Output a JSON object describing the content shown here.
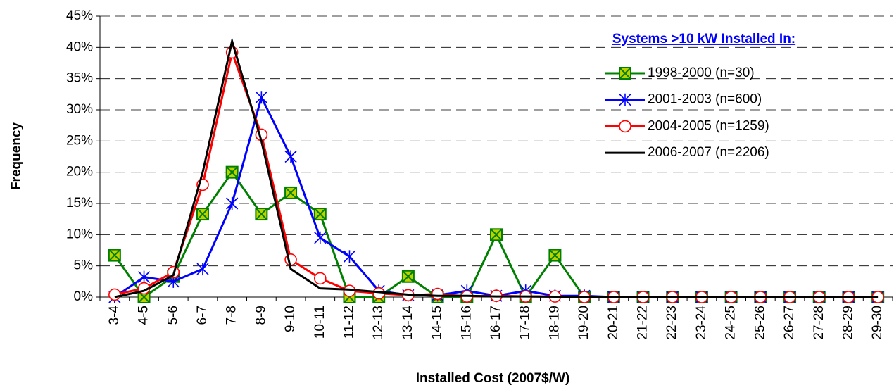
{
  "chart_data": {
    "type": "line",
    "x_label": "Installed Cost (2007$/W)",
    "y_label": "Frequency",
    "legend_title": "Systems >10 kW Installed In:",
    "categories": [
      "3-4",
      "4-5",
      "5-6",
      "6-7",
      "7-8",
      "8-9",
      "9-10",
      "10-11",
      "11-12",
      "12-13",
      "13-14",
      "14-15",
      "15-16",
      "16-17",
      "17-18",
      "18-19",
      "19-20",
      "20-21",
      "21-22",
      "22-23",
      "23-24",
      "24-25",
      "25-26",
      "26-27",
      "27-28",
      "28-29",
      "29-30"
    ],
    "series": [
      {
        "name": "1998-2000 (n=30)",
        "color": "#008000",
        "marker": "square-x",
        "values": [
          6.7,
          0,
          3.3,
          13.3,
          20,
          13.3,
          16.7,
          13.3,
          0,
          0,
          3.3,
          0,
          0,
          10,
          0,
          6.7,
          0,
          0,
          0,
          0,
          0,
          0,
          0,
          0,
          0,
          0,
          0
        ]
      },
      {
        "name": "2001-2003 (n=600)",
        "color": "#0000ff",
        "marker": "asterisk",
        "values": [
          0,
          3.2,
          2.5,
          4.5,
          15,
          32,
          22.5,
          9.5,
          6.5,
          1,
          0.3,
          0.3,
          1,
          0.2,
          1,
          0.2,
          0.2,
          0,
          0,
          0,
          0,
          0,
          0,
          0,
          0,
          0,
          0
        ]
      },
      {
        "name": "2004-2005 (n=1259)",
        "color": "#ff0000",
        "marker": "circle",
        "values": [
          0.4,
          1.4,
          4,
          18,
          39.2,
          26,
          6,
          3,
          1,
          0.6,
          0.3,
          0.5,
          0.1,
          0.2,
          0.1,
          0.1,
          0,
          0,
          0,
          0,
          0,
          0,
          0,
          0,
          0,
          0,
          0
        ]
      },
      {
        "name": "2006-2007 (n=2206)",
        "color": "#000000",
        "marker": "none",
        "values": [
          0,
          1,
          3.5,
          20,
          41,
          25,
          4.5,
          1.4,
          1.2,
          0.8,
          0.4,
          0.2,
          0.2,
          0.1,
          0.1,
          0.05,
          0.05,
          0,
          0,
          0,
          0,
          0,
          0,
          0,
          0,
          0,
          0
        ]
      }
    ],
    "ylim": [
      0,
      45
    ],
    "yticks": [
      {
        "value": 0,
        "label": "0%"
      },
      {
        "value": 5,
        "label": "5%"
      },
      {
        "value": 10,
        "label": "10%"
      },
      {
        "value": 15,
        "label": "15%"
      },
      {
        "value": 20,
        "label": "20%"
      },
      {
        "value": 25,
        "label": "25%"
      },
      {
        "value": 30,
        "label": "30%"
      },
      {
        "value": 35,
        "label": "35%"
      },
      {
        "value": 40,
        "label": "40%"
      },
      {
        "value": 45,
        "label": "45%"
      }
    ],
    "grid": true,
    "legend_position": "upper right"
  }
}
